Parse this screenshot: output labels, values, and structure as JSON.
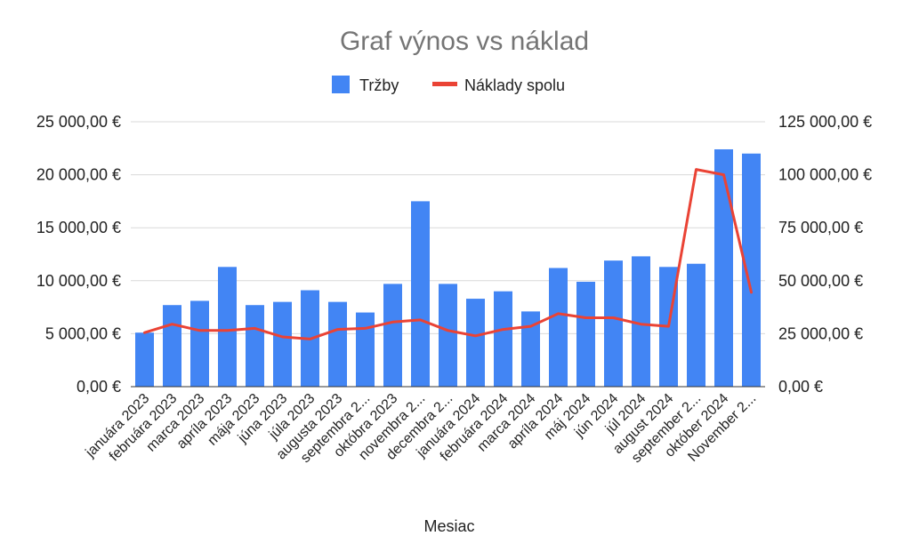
{
  "chart_data": {
    "type": "bar",
    "title": "Graf výnos vs náklad",
    "xlabel": "Mesiac",
    "ylabel": "",
    "ylabel_right": "",
    "grid": true,
    "legend_position": "top",
    "categories": [
      "januára 2023",
      "februára 2023",
      "marca 2023",
      "apríla 2023",
      "mája 2023",
      "júna 2023",
      "júla 2023",
      "augusta 2023",
      "septembra 2...",
      "októbra 2023",
      "novembra 2...",
      "decembra 2...",
      "januára 2024",
      "februára 2024",
      "marca 2024",
      "apríla 2024",
      "máj 2024",
      "jún 2024",
      "júl 2024",
      "august 2024",
      "september 2...",
      "október 2024",
      "November 2..."
    ],
    "series": [
      {
        "name": "Tržby",
        "type": "bar",
        "axis": "left",
        "color": "#4285f4",
        "values": [
          5100,
          7700,
          8100,
          11300,
          7700,
          8000,
          9100,
          8000,
          7000,
          9700,
          17500,
          9700,
          8300,
          9000,
          7100,
          11200,
          9900,
          11900,
          12300,
          11300,
          11600,
          22400,
          22000
        ]
      },
      {
        "name": "Náklady spolu",
        "type": "line",
        "axis": "right",
        "color": "#ea4335",
        "values": [
          25500,
          29500,
          26500,
          26500,
          27500,
          23500,
          22500,
          27000,
          27500,
          30500,
          31500,
          26500,
          24000,
          27000,
          28500,
          34500,
          32500,
          32500,
          29500,
          28500,
          102500,
          100000,
          44500
        ]
      }
    ],
    "ylim": [
      0,
      25000
    ],
    "ylim_right": [
      0,
      125000
    ],
    "yticks": [
      "0,00 €",
      "5 000,00 €",
      "10 000,00 €",
      "15 000,00 €",
      "20 000,00 €",
      "25 000,00 €"
    ],
    "yticks_right": [
      "0,00 €",
      "25 000,00 €",
      "50 000,00 €",
      "75 000,00 €",
      "100 000,00 €",
      "125 000,00 €"
    ]
  }
}
